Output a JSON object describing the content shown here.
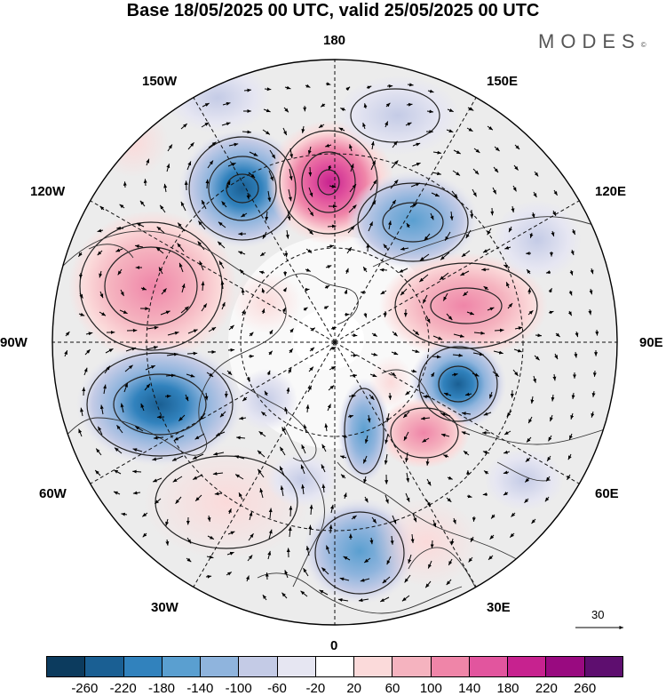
{
  "title": "Base 18/05/2025 00 UTC, valid 25/05/2025 00 UTC",
  "brand": "MODES",
  "brand_mark": "©",
  "longitude_labels": {
    "lon_180": "180",
    "lon_150E": "150E",
    "lon_120E": "120E",
    "lon_90E": "90E",
    "lon_60E": "60E",
    "lon_30E": "30E",
    "lon_0": "0",
    "lon_30W": "30W",
    "lon_60W": "60W",
    "lon_90W": "90W",
    "lon_120W": "120W",
    "lon_150W": "150W"
  },
  "colorbar": {
    "colors": [
      "#0c3b5e",
      "#1a5f93",
      "#3182bd",
      "#5a9fd0",
      "#8fb4dd",
      "#c4cbe6",
      "#e6e6f2",
      "#ffffff",
      "#fbdada",
      "#f5b3bf",
      "#ef85a8",
      "#e2559e",
      "#c7228f",
      "#990a80",
      "#5e0e6f"
    ],
    "ticks": [
      "-260",
      "-220",
      "-180",
      "-140",
      "-100",
      "-60",
      "-20",
      "20",
      "60",
      "100",
      "140",
      "180",
      "220",
      "260"
    ]
  },
  "reference_vector": {
    "value": "30"
  }
}
